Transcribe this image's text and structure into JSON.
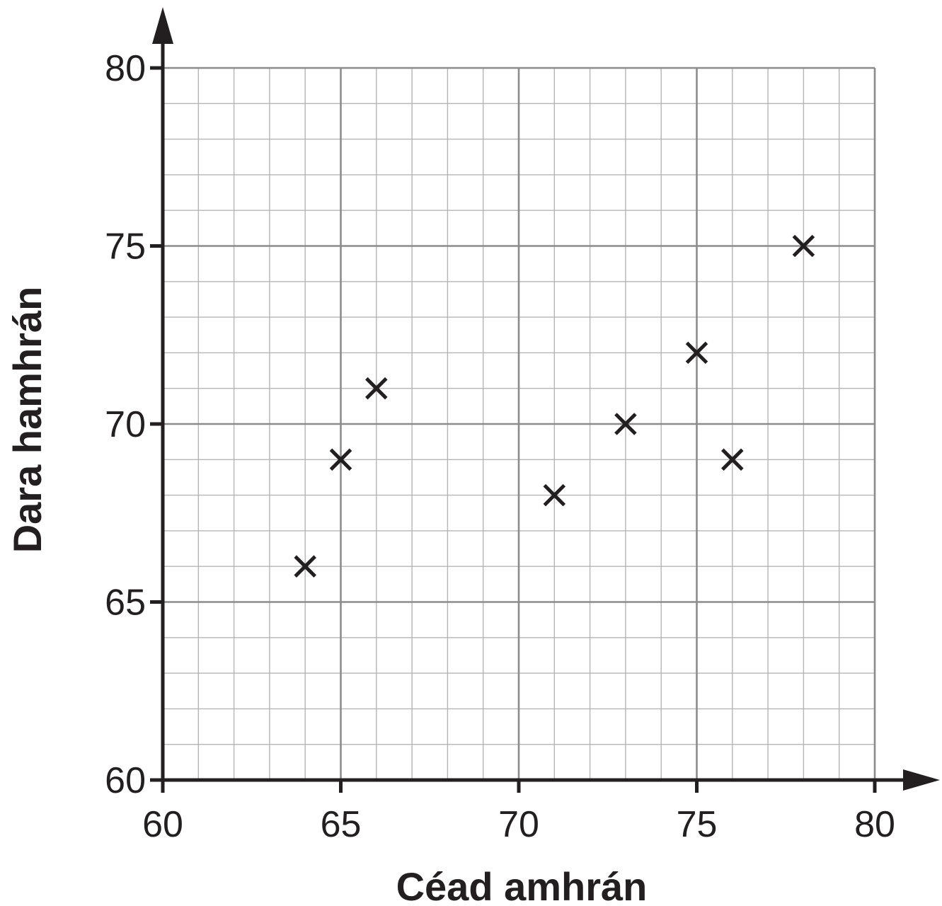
{
  "chart_data": {
    "type": "scatter",
    "xlabel": "Céad amhrán",
    "ylabel": "Dara hamhrán",
    "xlim": [
      60,
      80
    ],
    "ylim": [
      60,
      80
    ],
    "x_ticks": [
      "60",
      "65",
      "70",
      "75",
      "80"
    ],
    "y_ticks": [
      "60",
      "65",
      "70",
      "75",
      "80"
    ],
    "minor_step": 1,
    "major_step": 5,
    "grid": true,
    "marker": "x",
    "points": [
      {
        "x": 64,
        "y": 66
      },
      {
        "x": 65,
        "y": 69
      },
      {
        "x": 66,
        "y": 71
      },
      {
        "x": 71,
        "y": 68
      },
      {
        "x": 73,
        "y": 70
      },
      {
        "x": 75,
        "y": 72
      },
      {
        "x": 76,
        "y": 69
      },
      {
        "x": 78,
        "y": 75
      }
    ],
    "colors": {
      "axis": "#231f20",
      "grid_major": "#8c8c8c",
      "grid_minor": "#b5b5b5",
      "marker": "#231f20"
    }
  }
}
